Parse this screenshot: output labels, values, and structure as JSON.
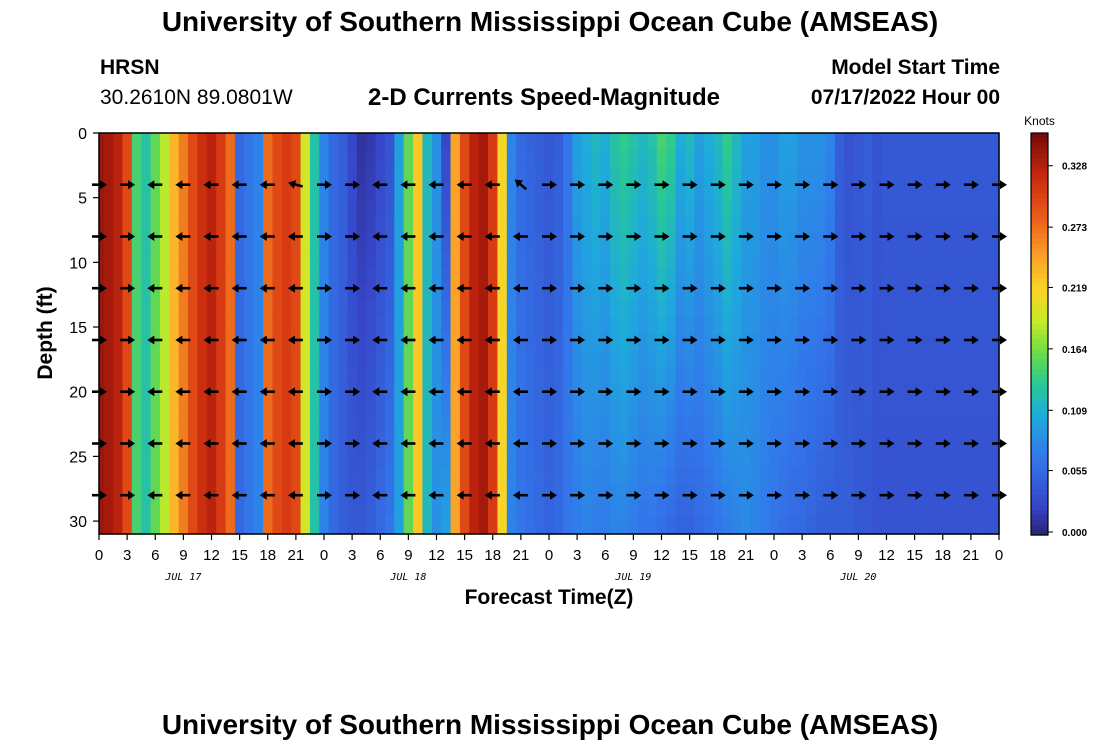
{
  "header": {
    "title": "University of Southern Mississippi Ocean Cube (AMSEAS)",
    "station": "HRSN",
    "coords": "30.2610N  89.0801W",
    "subtitle": "2-D Currents Speed-Magnitude",
    "model_start_label": "Model Start Time",
    "model_start_value": "07/17/2022 Hour 00"
  },
  "footer": {
    "title": "University of Southern Mississippi Ocean Cube (AMSEAS)"
  },
  "chart_data": {
    "type": "heatmap",
    "title": "2-D Currents Speed-Magnitude",
    "xlabel": "Forecast Time(Z)",
    "ylabel": "Depth (ft)",
    "x_tick_labels": [
      "0",
      "3",
      "6",
      "9",
      "12",
      "15",
      "18",
      "21",
      "0",
      "3",
      "6",
      "9",
      "12",
      "15",
      "18",
      "21",
      "0",
      "3",
      "6",
      "9",
      "12",
      "15",
      "18",
      "21",
      "0",
      "3",
      "6",
      "9",
      "12",
      "15",
      "18",
      "21",
      "0"
    ],
    "day_labels": [
      "JUL 17",
      "JUL 18",
      "JUL 19",
      "JUL 20"
    ],
    "y_ticks": [
      0,
      5,
      10,
      15,
      20,
      25,
      30
    ],
    "ylim": [
      0,
      31
    ],
    "xlim_hours": [
      0,
      96
    ],
    "colorbar": {
      "label": "Knots",
      "ticks": [
        "0.328",
        "0.273",
        "0.219",
        "0.164",
        "0.109",
        "0.055",
        "0.000"
      ],
      "range": [
        0,
        0.36
      ]
    },
    "column_hours": [
      0,
      1,
      2,
      3,
      4,
      5,
      6,
      7,
      8,
      9,
      10,
      11,
      12,
      13,
      14,
      15,
      16,
      17,
      18,
      19,
      20,
      21,
      22,
      23,
      24,
      25,
      26,
      27,
      28,
      29,
      30,
      31,
      32,
      33,
      34,
      35,
      36,
      37,
      38,
      39,
      40,
      41,
      42,
      43,
      44,
      45,
      46,
      47,
      48,
      49,
      50,
      51,
      52,
      53,
      54,
      55,
      56,
      57,
      58,
      59,
      60,
      61,
      62,
      63,
      64,
      65,
      66,
      67,
      68,
      69,
      70,
      71,
      72,
      73,
      74,
      75,
      76,
      77,
      78,
      79,
      80,
      81,
      82,
      83,
      84,
      85,
      86,
      87,
      88,
      89,
      90,
      91,
      92,
      93,
      94,
      95,
      96
    ],
    "speed_surface_knots": [
      0.345,
      0.34,
      0.33,
      0.3,
      0.15,
      0.13,
      0.16,
      0.19,
      0.24,
      0.27,
      0.3,
      0.32,
      0.33,
      0.31,
      0.28,
      0.06,
      0.07,
      0.08,
      0.28,
      0.3,
      0.31,
      0.3,
      0.2,
      0.13,
      0.08,
      0.06,
      0.05,
      0.03,
      0.015,
      0.02,
      0.03,
      0.04,
      0.1,
      0.16,
      0.23,
      0.12,
      0.09,
      0.03,
      0.25,
      0.3,
      0.33,
      0.34,
      0.31,
      0.22,
      0.08,
      0.06,
      0.055,
      0.05,
      0.045,
      0.05,
      0.07,
      0.1,
      0.11,
      0.12,
      0.11,
      0.13,
      0.14,
      0.13,
      0.12,
      0.13,
      0.15,
      0.14,
      0.11,
      0.12,
      0.1,
      0.11,
      0.12,
      0.14,
      0.12,
      0.1,
      0.1,
      0.09,
      0.09,
      0.1,
      0.1,
      0.09,
      0.09,
      0.09,
      0.08,
      0.05,
      0.04,
      0.045,
      0.05,
      0.04,
      0.045,
      0.045,
      0.045,
      0.045,
      0.045,
      0.045,
      0.045,
      0.045,
      0.045,
      0.045,
      0.045,
      0.045,
      0.045
    ],
    "speed_bottom_knots": [
      0.345,
      0.34,
      0.33,
      0.3,
      0.15,
      0.13,
      0.16,
      0.19,
      0.24,
      0.27,
      0.3,
      0.32,
      0.33,
      0.31,
      0.28,
      0.06,
      0.07,
      0.08,
      0.28,
      0.3,
      0.31,
      0.3,
      0.2,
      0.13,
      0.08,
      0.06,
      0.05,
      0.045,
      0.045,
      0.05,
      0.06,
      0.07,
      0.1,
      0.16,
      0.23,
      0.12,
      0.09,
      0.1,
      0.25,
      0.3,
      0.33,
      0.34,
      0.31,
      0.22,
      0.08,
      0.07,
      0.065,
      0.06,
      0.055,
      0.06,
      0.07,
      0.075,
      0.08,
      0.075,
      0.075,
      0.08,
      0.08,
      0.075,
      0.07,
      0.07,
      0.065,
      0.06,
      0.055,
      0.055,
      0.06,
      0.065,
      0.07,
      0.075,
      0.08,
      0.085,
      0.08,
      0.075,
      0.07,
      0.065,
      0.06,
      0.06,
      0.055,
      0.05,
      0.05,
      0.05,
      0.05,
      0.045,
      0.045,
      0.04,
      0.04,
      0.04,
      0.04,
      0.04,
      0.04,
      0.04,
      0.04,
      0.04,
      0.04,
      0.04,
      0.04,
      0.04,
      0.04
    ],
    "vector_depths_ft": [
      4,
      8,
      12,
      16,
      20,
      24,
      28
    ],
    "vector_hours": [
      0,
      3,
      6,
      9,
      12,
      15,
      18,
      21,
      24,
      27,
      30,
      33,
      36,
      39,
      42,
      45,
      48,
      51,
      54,
      57,
      60,
      63,
      66,
      69,
      72,
      75,
      78,
      81,
      84,
      87,
      90,
      93,
      96
    ],
    "vector_direction_note": "direction in degrees, 0 = pointing right, 90 = pointing down (screen)",
    "vector_angles_deg": [
      [
        0,
        0,
        180,
        180,
        180,
        180,
        180,
        195,
        0,
        0,
        180,
        180,
        180,
        180,
        180,
        220,
        0,
        0,
        0,
        0,
        0,
        0,
        0,
        0,
        0,
        0,
        0,
        0,
        0,
        0,
        0,
        0,
        0
      ],
      [
        0,
        0,
        180,
        180,
        180,
        180,
        180,
        180,
        0,
        0,
        180,
        180,
        180,
        180,
        180,
        180,
        0,
        0,
        0,
        0,
        0,
        0,
        0,
        0,
        0,
        0,
        0,
        0,
        0,
        0,
        0,
        0,
        0
      ],
      [
        0,
        0,
        180,
        180,
        180,
        180,
        180,
        180,
        0,
        0,
        180,
        180,
        180,
        180,
        180,
        180,
        0,
        0,
        0,
        0,
        0,
        0,
        0,
        0,
        0,
        0,
        0,
        0,
        0,
        0,
        0,
        0,
        0
      ],
      [
        0,
        0,
        180,
        180,
        180,
        180,
        180,
        180,
        0,
        0,
        180,
        180,
        180,
        180,
        180,
        180,
        0,
        0,
        0,
        0,
        0,
        0,
        0,
        0,
        0,
        0,
        0,
        0,
        0,
        0,
        0,
        0,
        0
      ],
      [
        0,
        0,
        180,
        180,
        180,
        180,
        180,
        180,
        0,
        0,
        180,
        180,
        180,
        180,
        180,
        180,
        0,
        0,
        0,
        0,
        0,
        0,
        0,
        0,
        0,
        0,
        0,
        0,
        0,
        0,
        0,
        0,
        0
      ],
      [
        0,
        0,
        180,
        180,
        180,
        180,
        180,
        180,
        0,
        0,
        180,
        180,
        180,
        180,
        180,
        180,
        0,
        0,
        0,
        0,
        0,
        0,
        0,
        0,
        0,
        0,
        0,
        0,
        0,
        0,
        0,
        0,
        0
      ],
      [
        0,
        0,
        180,
        180,
        180,
        180,
        180,
        180,
        0,
        0,
        180,
        180,
        180,
        180,
        180,
        180,
        0,
        0,
        0,
        0,
        0,
        0,
        0,
        0,
        0,
        0,
        0,
        0,
        0,
        0,
        0,
        0,
        0
      ]
    ]
  }
}
